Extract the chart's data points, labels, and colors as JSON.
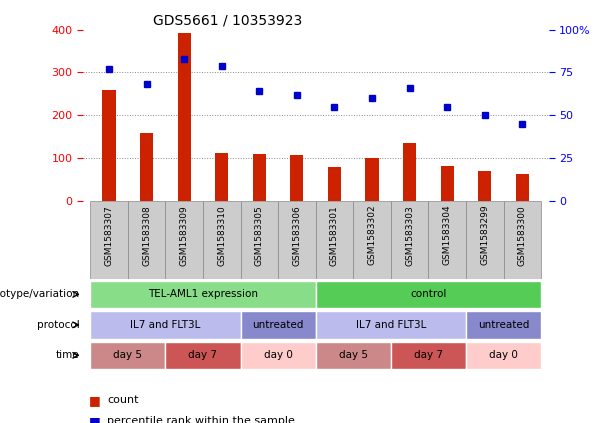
{
  "title": "GDS5661 / 10353923",
  "samples": [
    "GSM1583307",
    "GSM1583308",
    "GSM1583309",
    "GSM1583310",
    "GSM1583305",
    "GSM1583306",
    "GSM1583301",
    "GSM1583302",
    "GSM1583303",
    "GSM1583304",
    "GSM1583299",
    "GSM1583300"
  ],
  "counts": [
    258,
    158,
    393,
    113,
    110,
    107,
    80,
    100,
    135,
    82,
    70,
    62
  ],
  "percentiles": [
    77,
    68,
    83,
    79,
    64,
    62,
    55,
    60,
    66,
    55,
    50,
    45
  ],
  "bar_color": "#cc2200",
  "dot_color": "#0000cc",
  "ylim_left": [
    0,
    400
  ],
  "ylim_right": [
    0,
    100
  ],
  "left_ticks": [
    0,
    100,
    200,
    300,
    400
  ],
  "right_ticks": [
    0,
    25,
    50,
    75,
    100
  ],
  "right_tick_labels": [
    "0",
    "25",
    "50",
    "75",
    "100%"
  ],
  "genotype_row": {
    "label": "genotype/variation",
    "groups": [
      {
        "text": "TEL-AML1 expression",
        "start": 0,
        "end": 5,
        "color": "#88dd88"
      },
      {
        "text": "control",
        "start": 6,
        "end": 11,
        "color": "#55cc55"
      }
    ]
  },
  "protocol_row": {
    "label": "protocol",
    "groups": [
      {
        "text": "IL7 and FLT3L",
        "start": 0,
        "end": 3,
        "color": "#bbbbee"
      },
      {
        "text": "untreated",
        "start": 4,
        "end": 5,
        "color": "#8888cc"
      },
      {
        "text": "IL7 and FLT3L",
        "start": 6,
        "end": 9,
        "color": "#bbbbee"
      },
      {
        "text": "untreated",
        "start": 10,
        "end": 11,
        "color": "#8888cc"
      }
    ]
  },
  "time_row": {
    "label": "time",
    "groups": [
      {
        "text": "day 5",
        "start": 0,
        "end": 1,
        "color": "#cc8888"
      },
      {
        "text": "day 7",
        "start": 2,
        "end": 3,
        "color": "#cc5555"
      },
      {
        "text": "day 0",
        "start": 4,
        "end": 5,
        "color": "#ffcccc"
      },
      {
        "text": "day 5",
        "start": 6,
        "end": 7,
        "color": "#cc8888"
      },
      {
        "text": "day 7",
        "start": 8,
        "end": 9,
        "color": "#cc5555"
      },
      {
        "text": "day 0",
        "start": 10,
        "end": 11,
        "color": "#ffcccc"
      }
    ]
  },
  "sample_cell_color": "#cccccc",
  "sample_cell_edge": "#888888",
  "bg_color": "#ffffff",
  "grid_color": "#888888",
  "bar_width": 0.35,
  "dot_size": 40,
  "row_labels": [
    "genotype/variation",
    "protocol",
    "time"
  ],
  "legend_count_color": "#cc2200",
  "legend_pct_color": "#0000cc"
}
